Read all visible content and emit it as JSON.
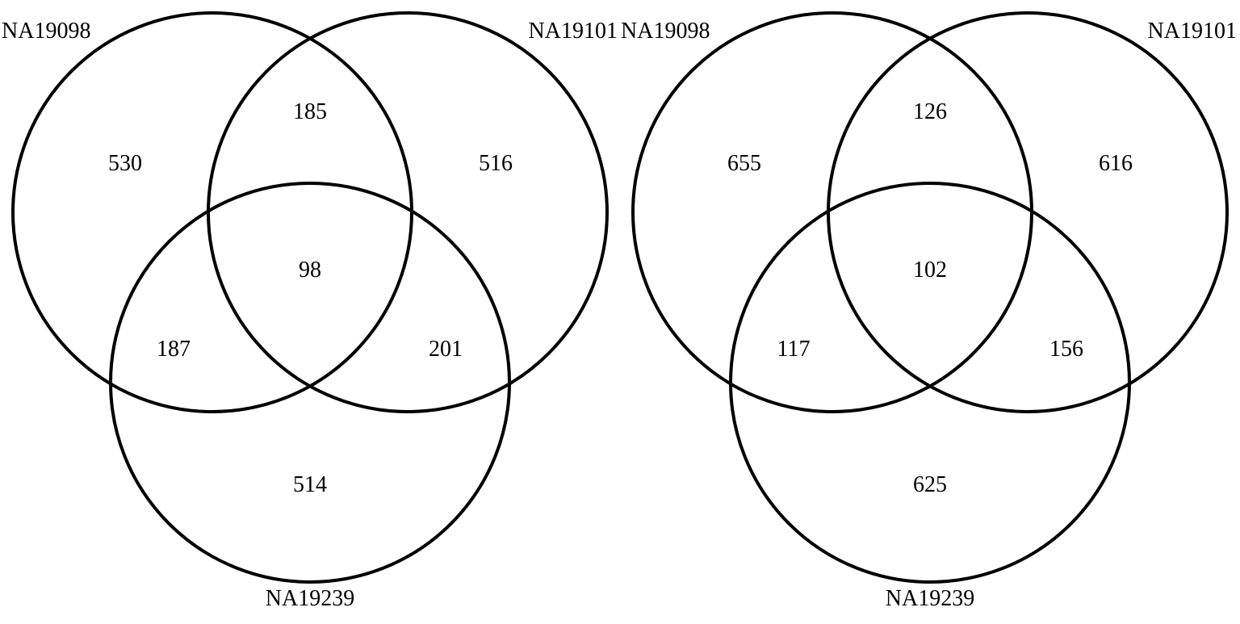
{
  "diagrams": [
    {
      "sets": {
        "a": "NA19098",
        "b": "NA19101",
        "c": "NA19239"
      },
      "regions": {
        "a_only": "530",
        "b_only": "516",
        "c_only": "514",
        "ab_only": "185",
        "ac_only": "187",
        "bc_only": "201",
        "abc": "98"
      }
    },
    {
      "sets": {
        "a": "NA19098",
        "b": "NA19101",
        "c": "NA19239"
      },
      "regions": {
        "a_only": "655",
        "b_only": "616",
        "c_only": "625",
        "ab_only": "126",
        "ac_only": "117",
        "bc_only": "156",
        "abc": "102"
      }
    }
  ],
  "style": {
    "stroke_color": "#000000",
    "text_color": "#000000",
    "background": "#ffffff"
  }
}
